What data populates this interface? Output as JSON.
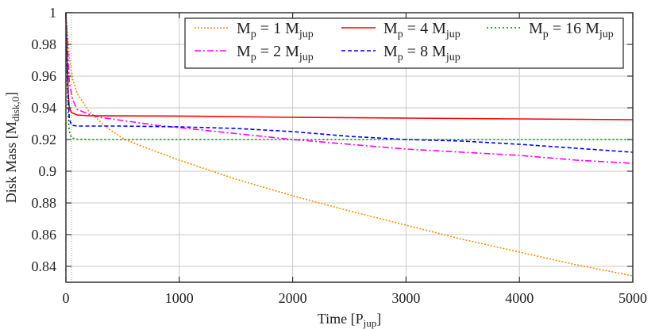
{
  "chart_data": {
    "type": "line",
    "xlabel": "Time [P",
    "xlabel_sub": "jup",
    "xlabel_end": "]",
    "ylabel": "Disk Mass [M",
    "ylabel_sub": "disk,0",
    "ylabel_end": "]",
    "xlim": [
      0,
      5000
    ],
    "ylim": [
      0.83,
      1.0
    ],
    "xticks": [
      0,
      1000,
      2000,
      3000,
      4000,
      5000
    ],
    "yticks": [
      0.84,
      0.86,
      0.88,
      0.9,
      0.92,
      0.94,
      0.96,
      0.98,
      1
    ],
    "ytick_labels": [
      "0.84",
      "0.86",
      "0.88",
      "0.9",
      "0.92",
      "0.94",
      "0.96",
      "0.98",
      "1"
    ],
    "grid": true,
    "vertical_marker_x": 50,
    "legend_placement": "top-right",
    "series": [
      {
        "name": "M_p = 1 M_jup",
        "label_main": "M",
        "label_sub": "p",
        "label_mid": " = 1 M",
        "label_sub2": "jup",
        "color": "#ff8c00",
        "dash": "2,2",
        "x": [
          0,
          10,
          30,
          60,
          100,
          200,
          350,
          520,
          700,
          1000,
          1500,
          2000,
          2500,
          3000,
          3500,
          4000,
          4500,
          5000
        ],
        "y": [
          1.0,
          0.99,
          0.972,
          0.958,
          0.949,
          0.938,
          0.928,
          0.92,
          0.915,
          0.907,
          0.895,
          0.8845,
          0.875,
          0.866,
          0.857,
          0.849,
          0.841,
          0.834
        ]
      },
      {
        "name": "M_p = 2 M_jup",
        "label_main": "M",
        "label_sub": "p",
        "label_mid": " = 2 M",
        "label_sub2": "jup",
        "color": "#ff00ff",
        "dash": "8,3,2,3",
        "x": [
          0,
          10,
          30,
          60,
          100,
          200,
          300,
          500,
          800,
          1200,
          2000,
          2500,
          3000,
          3500,
          4000,
          4500,
          5000
        ],
        "y": [
          1.0,
          0.985,
          0.956,
          0.945,
          0.939,
          0.936,
          0.934,
          0.932,
          0.929,
          0.926,
          0.92,
          0.917,
          0.914,
          0.912,
          0.91,
          0.907,
          0.905
        ]
      },
      {
        "name": "M_p = 4 M_jup",
        "label_main": "M",
        "label_sub": "p",
        "label_mid": " = 4 M",
        "label_sub2": "jup",
        "color": "#ff0000",
        "dash": "",
        "x": [
          0,
          10,
          20,
          30,
          50,
          100,
          200,
          1000,
          2000,
          3000,
          4000,
          5000
        ],
        "y": [
          1.0,
          0.975,
          0.95,
          0.94,
          0.937,
          0.9355,
          0.935,
          0.9348,
          0.934,
          0.9335,
          0.933,
          0.9325
        ]
      },
      {
        "name": "M_p = 8 M_jup",
        "label_main": "M",
        "label_sub": "p",
        "label_mid": " = 8 M",
        "label_sub2": "jup",
        "color": "#0000ff",
        "dash": "5,3",
        "x": [
          0,
          10,
          20,
          30,
          50,
          100,
          500,
          1000,
          1500,
          2000,
          2500,
          3000,
          3500,
          4000,
          4500,
          5000
        ],
        "y": [
          1.0,
          0.97,
          0.945,
          0.933,
          0.929,
          0.9285,
          0.9285,
          0.928,
          0.927,
          0.925,
          0.922,
          0.92,
          0.919,
          0.917,
          0.9145,
          0.912
        ]
      },
      {
        "name": "M_p = 16 M_jup",
        "label_main": "M",
        "label_sub": "p",
        "label_mid": " = 16 M",
        "label_sub2": "jup",
        "color": "#008000",
        "dash": "2,3",
        "x": [
          0,
          5,
          10,
          20,
          30,
          50,
          100,
          200,
          5000
        ],
        "y": [
          1.0,
          0.98,
          0.96,
          0.935,
          0.925,
          0.921,
          0.9202,
          0.92,
          0.92
        ]
      }
    ]
  }
}
